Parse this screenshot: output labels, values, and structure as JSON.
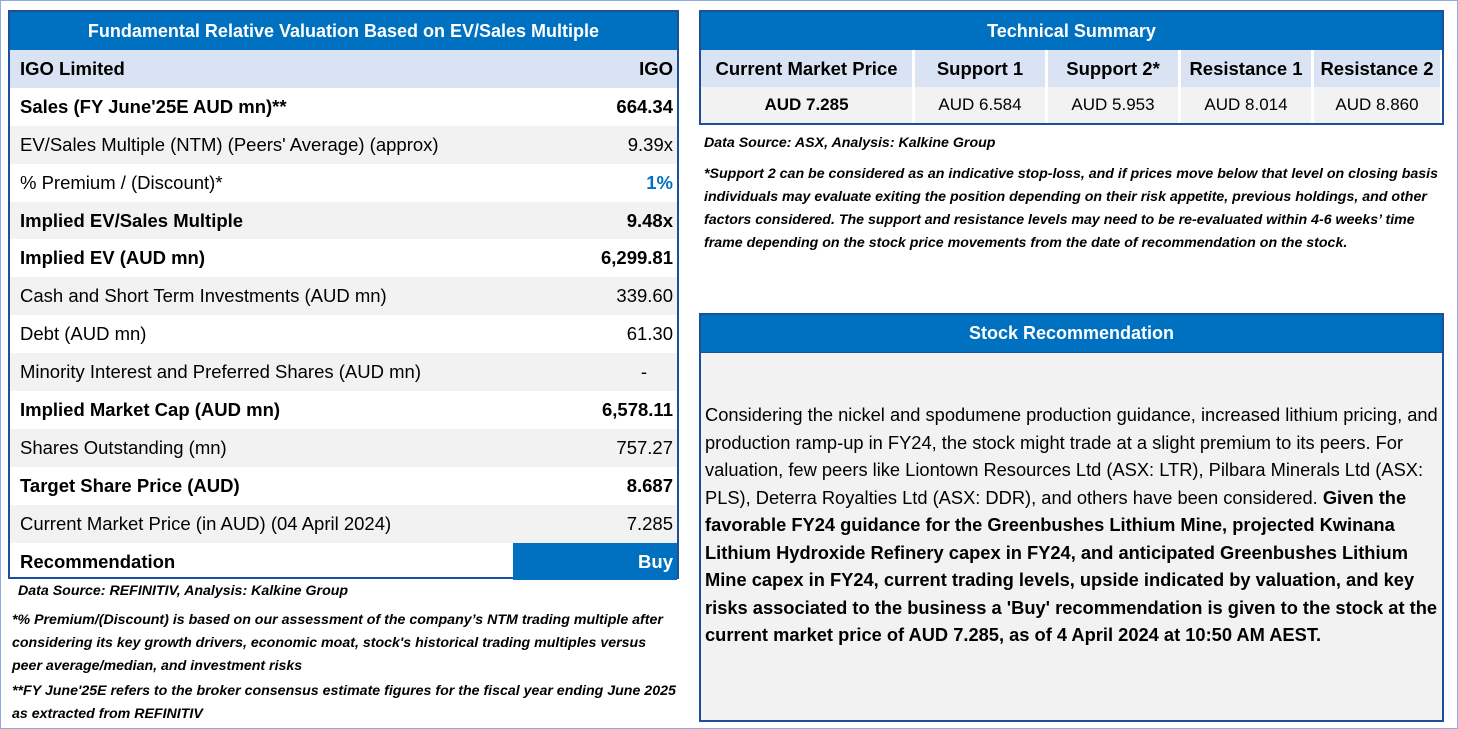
{
  "valuation": {
    "title": "Fundamental Relative Valuation Based on EV/Sales Multiple",
    "rows": [
      {
        "label": "IGO Limited",
        "value": "IGO"
      },
      {
        "label": "Sales (FY June'25E AUD mn)**",
        "value": "664.34"
      },
      {
        "label": "EV/Sales Multiple (NTM)  (Peers' Average) (approx)",
        "value": "9.39x"
      },
      {
        "label": "% Premium / (Discount)*",
        "value": "1%"
      },
      {
        "label": "Implied EV/Sales Multiple",
        "value": "9.48x"
      },
      {
        "label": "Implied EV (AUD mn)",
        "value": "6,299.81"
      },
      {
        "label": "Cash and Short Term Investments (AUD mn)",
        "value": "339.60"
      },
      {
        "label": "Debt (AUD mn)",
        "value": "61.30"
      },
      {
        "label": "Minority Interest and Preferred Shares (AUD mn)",
        "value": "-"
      },
      {
        "label": "Implied Market Cap (AUD mn)",
        "value": "6,578.11"
      },
      {
        "label": "Shares Outstanding (mn)",
        "value": "757.27"
      },
      {
        "label": "Target Share Price (AUD)",
        "value": "8.687"
      },
      {
        "label": "Current Market Price (in AUD) (04 April 2024)",
        "value": "7.285"
      },
      {
        "label": "Recommendation",
        "value": "Buy"
      }
    ],
    "source": "Data Source: REFINITIV, Analysis: Kalkine Group",
    "note1": "*% Premium/(Discount) is based on our assessment of the company’s NTM trading multiple after considering its key growth drivers, economic moat, stock's historical trading multiples versus peer average/median, and investment risks",
    "note2": "**FY June'25E refers to the broker consensus estimate figures for the fiscal year ending June 2025  as extracted from REFINITIV"
  },
  "technical": {
    "title": "Technical Summary",
    "columns": [
      {
        "header": "Current Market Price",
        "value": "AUD 7.285"
      },
      {
        "header": "Support 1",
        "value": "AUD 6.584"
      },
      {
        "header": "Support 2*",
        "value": "AUD 5.953"
      },
      {
        "header": "Resistance 1",
        "value": "AUD 8.014"
      },
      {
        "header": "Resistance 2",
        "value": "AUD 8.860"
      }
    ],
    "source": "Data Source: ASX, Analysis: Kalkine Group",
    "note": "*Support 2 can be considered as an indicative stop-loss, and if prices move below that level on closing basis individuals may evaluate exiting the position depending on their risk appetite, previous holdings, and other factors considered. The support and resistance levels may need to be re-evaluated within 4-6 weeks’ time frame depending on the stock price movements from the date of recommendation on the stock."
  },
  "recommendation": {
    "title": "Stock Recommendation",
    "text_regular": "Considering the nickel and spodumene production guidance, increased lithium pricing, and production ramp-up in FY24, the stock might trade at a slight premium to its peers. For valuation, few peers like Liontown Resources Ltd (ASX: LTR), Pilbara Minerals Ltd (ASX: PLS), Deterra Royalties Ltd (ASX: DDR), and others have been considered. ",
    "text_bold": "Given the favorable FY24 guidance for the Greenbushes Lithium Mine, projected Kwinana Lithium Hydroxide Refinery capex in FY24, and anticipated Greenbushes Lithium Mine capex in FY24, current trading levels, upside indicated by valuation, and key risks associated to the business a 'Buy' recommendation is given to the stock at the current market price of AUD 7.285, as of 4 April 2024 at 10:50 AM AEST."
  },
  "colors": {
    "header_blue": "#0070c0",
    "border_blue": "#1f4e9a",
    "light_blue": "#dae3f3",
    "light_gray": "#f2f2f2"
  }
}
